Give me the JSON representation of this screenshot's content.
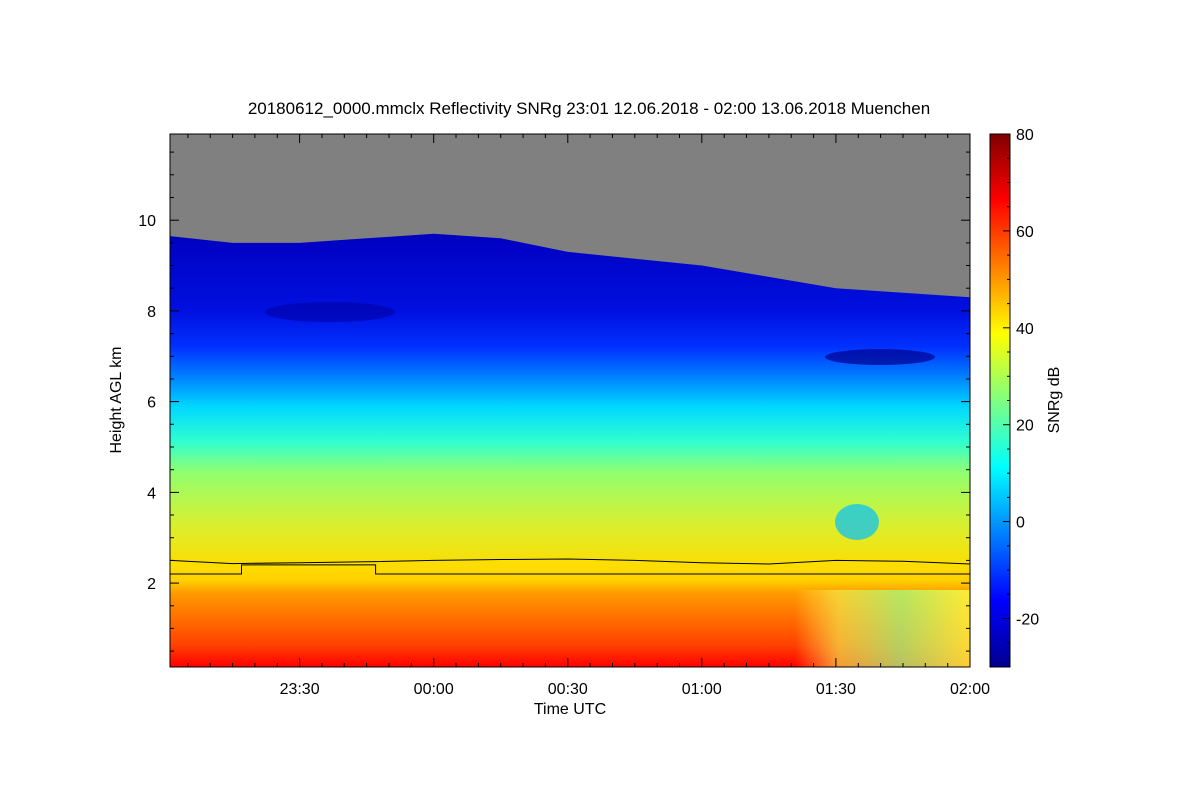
{
  "chart_data": {
    "type": "heatmap",
    "title": "20180612_0000.mmclx Reflectivity SNRg   23:01 12.06.2018 - 02:00 13.06.2018 Muenchen",
    "xlabel": "Time UTC",
    "ylabel": "Height AGL km",
    "colorbar_label": "SNRg dB",
    "x_range": [
      "23:01",
      "02:00"
    ],
    "y_range_km": [
      0.15,
      11.9
    ],
    "color_range_db": [
      -30,
      80
    ],
    "x_ticks": [
      {
        "t": "23:30",
        "label": "23:30"
      },
      {
        "t": "00:00",
        "label": "00:00"
      },
      {
        "t": "00:30",
        "label": "00:30"
      },
      {
        "t": "01:00",
        "label": "01:00"
      },
      {
        "t": "01:30",
        "label": "01:30"
      },
      {
        "t": "02:00",
        "label": "02:00"
      }
    ],
    "y_ticks": [
      {
        "v": 2,
        "label": "2"
      },
      {
        "v": 4,
        "label": "4"
      },
      {
        "v": 6,
        "label": "6"
      },
      {
        "v": 8,
        "label": "8"
      },
      {
        "v": 10,
        "label": "10"
      }
    ],
    "colorbar_ticks": [
      {
        "v": -20,
        "label": "-20"
      },
      {
        "v": 0,
        "label": "0"
      },
      {
        "v": 20,
        "label": "20"
      },
      {
        "v": 40,
        "label": "40"
      },
      {
        "v": 60,
        "label": "60"
      },
      {
        "v": 80,
        "label": "80"
      }
    ],
    "colormap": [
      "#00008f",
      "#0000ff",
      "#0080ff",
      "#00ffff",
      "#80ff80",
      "#ffff00",
      "#ff8000",
      "#ff0000",
      "#800000"
    ],
    "no_signal_color": "#808080",
    "echo_top_km": [
      {
        "t": "23:01",
        "v": 9.65
      },
      {
        "t": "23:15",
        "v": 9.5
      },
      {
        "t": "23:30",
        "v": 9.5
      },
      {
        "t": "23:45",
        "v": 9.6
      },
      {
        "t": "00:00",
        "v": 9.7
      },
      {
        "t": "00:15",
        "v": 9.6
      },
      {
        "t": "00:30",
        "v": 9.3
      },
      {
        "t": "00:45",
        "v": 9.15
      },
      {
        "t": "01:00",
        "v": 9.0
      },
      {
        "t": "01:15",
        "v": 8.75
      },
      {
        "t": "01:30",
        "v": 8.5
      },
      {
        "t": "01:45",
        "v": 8.4
      },
      {
        "t": "02:00",
        "v": 8.3
      }
    ],
    "series": [
      {
        "points": [
          {
            "t": "23:01",
            "v": 2.5
          },
          {
            "t": "23:15",
            "v": 2.43
          },
          {
            "t": "23:30",
            "v": 2.45
          },
          {
            "t": "23:45",
            "v": 2.47
          },
          {
            "t": "00:00",
            "v": 2.5
          },
          {
            "t": "00:15",
            "v": 2.52
          },
          {
            "t": "00:30",
            "v": 2.53
          },
          {
            "t": "00:45",
            "v": 2.5
          },
          {
            "t": "01:00",
            "v": 2.45
          },
          {
            "t": "01:15",
            "v": 2.42
          },
          {
            "t": "01:30",
            "v": 2.5
          },
          {
            "t": "01:45",
            "v": 2.48
          },
          {
            "t": "02:00",
            "v": 2.42
          }
        ]
      },
      {
        "points": [
          {
            "t": "23:01",
            "v": 2.2
          },
          {
            "t": "23:17",
            "v": 2.2
          },
          {
            "t": "23:17",
            "v": 2.4
          },
          {
            "t": "23:47",
            "v": 2.4
          },
          {
            "t": "23:47",
            "v": 2.2
          },
          {
            "t": "02:00",
            "v": 2.2
          }
        ]
      }
    ]
  }
}
